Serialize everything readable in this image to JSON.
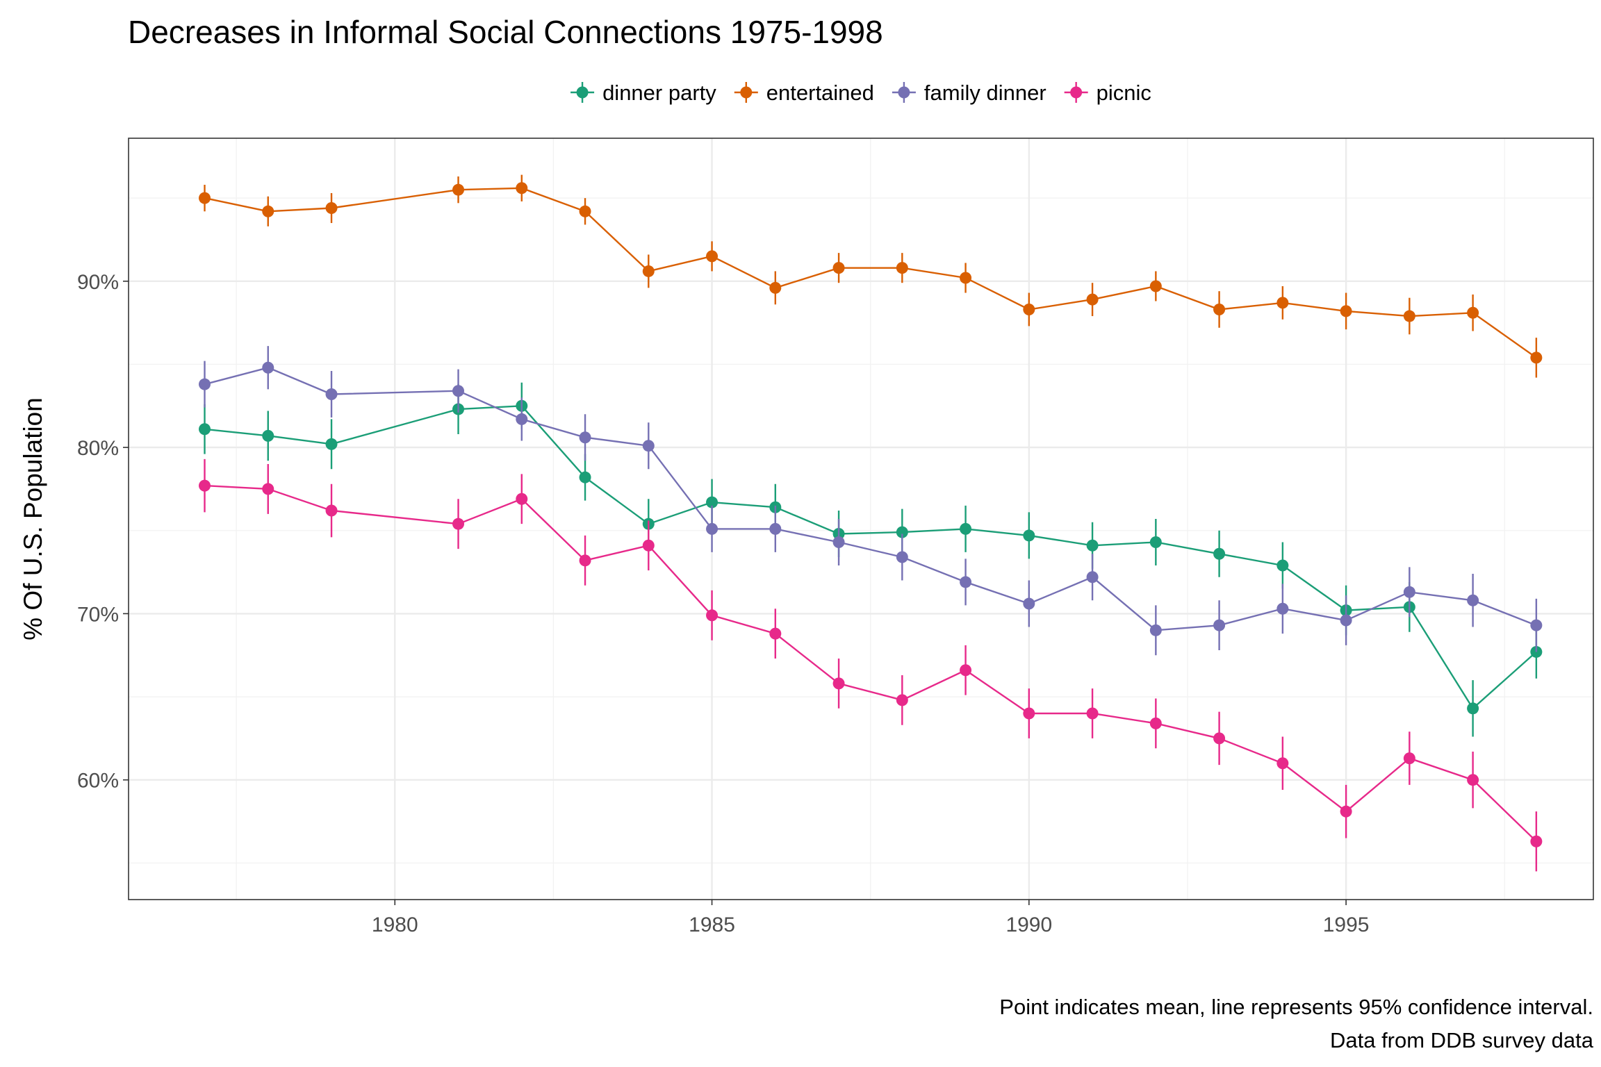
{
  "chart_data": {
    "type": "line",
    "title": "Decreases in Informal Social Connections 1975-1998",
    "xlabel": "",
    "ylabel": "% Of U.S. Population",
    "caption": [
      "Point indicates mean, line represents 95% confidence interval.",
      "Data from DDB survey data"
    ],
    "legend_position": "top",
    "grid": true,
    "xlim": [
      1975.8,
      1998.9
    ],
    "ylim": [
      52.8,
      98.6
    ],
    "x_ticks": [
      1980,
      1985,
      1990,
      1995
    ],
    "x_tick_labels": [
      "1980",
      "1985",
      "1990",
      "1995"
    ],
    "y_ticks": [
      60,
      70,
      80,
      90
    ],
    "y_tick_labels": [
      "60%",
      "70%",
      "80%",
      "90%"
    ],
    "x": [
      1977,
      1978,
      1979,
      1981,
      1982,
      1983,
      1984,
      1985,
      1986,
      1987,
      1988,
      1989,
      1990,
      1991,
      1992,
      1993,
      1994,
      1995,
      1996,
      1997,
      1998
    ],
    "series": [
      {
        "name": "dinner party",
        "color": "#1b9e77",
        "values": [
          81.1,
          80.7,
          80.2,
          82.3,
          82.5,
          78.2,
          75.4,
          76.7,
          76.4,
          74.8,
          74.9,
          75.1,
          74.7,
          74.1,
          74.3,
          73.6,
          72.9,
          70.2,
          70.4,
          64.3,
          67.7
        ],
        "ci_half": [
          1.5,
          1.5,
          1.5,
          1.5,
          1.4,
          1.4,
          1.5,
          1.4,
          1.4,
          1.4,
          1.4,
          1.4,
          1.4,
          1.4,
          1.4,
          1.4,
          1.4,
          1.5,
          1.5,
          1.7,
          1.6
        ]
      },
      {
        "name": "entertained",
        "color": "#d95f02",
        "values": [
          95.0,
          94.2,
          94.4,
          95.5,
          95.6,
          94.2,
          90.6,
          91.5,
          89.6,
          90.8,
          90.8,
          90.2,
          88.3,
          88.9,
          89.7,
          88.3,
          88.7,
          88.2,
          87.9,
          88.1,
          85.4
        ],
        "ci_half": [
          0.8,
          0.9,
          0.9,
          0.8,
          0.8,
          0.8,
          1.0,
          0.9,
          1.0,
          0.9,
          0.9,
          0.9,
          1.0,
          1.0,
          0.9,
          1.1,
          1.0,
          1.1,
          1.1,
          1.1,
          1.2
        ]
      },
      {
        "name": "family dinner",
        "color": "#7570b3",
        "values": [
          83.8,
          84.8,
          83.2,
          83.4,
          81.7,
          80.6,
          80.1,
          75.1,
          75.1,
          74.3,
          73.4,
          71.9,
          70.6,
          72.2,
          69.0,
          69.3,
          70.3,
          69.6,
          71.3,
          70.8,
          69.3
        ],
        "ci_half": [
          1.4,
          1.3,
          1.4,
          1.3,
          1.3,
          1.4,
          1.4,
          1.4,
          1.4,
          1.4,
          1.4,
          1.4,
          1.4,
          1.4,
          1.5,
          1.5,
          1.5,
          1.5,
          1.5,
          1.6,
          1.6
        ]
      },
      {
        "name": "picnic",
        "color": "#e7298a",
        "values": [
          77.7,
          77.5,
          76.2,
          75.4,
          76.9,
          73.2,
          74.1,
          69.9,
          68.8,
          65.8,
          64.8,
          66.6,
          64.0,
          64.0,
          63.4,
          62.5,
          61.0,
          58.1,
          61.3,
          60.0,
          56.3
        ],
        "ci_half": [
          1.6,
          1.5,
          1.6,
          1.5,
          1.5,
          1.5,
          1.5,
          1.5,
          1.5,
          1.5,
          1.5,
          1.5,
          1.5,
          1.5,
          1.5,
          1.6,
          1.6,
          1.6,
          1.6,
          1.7,
          1.8
        ]
      }
    ]
  }
}
